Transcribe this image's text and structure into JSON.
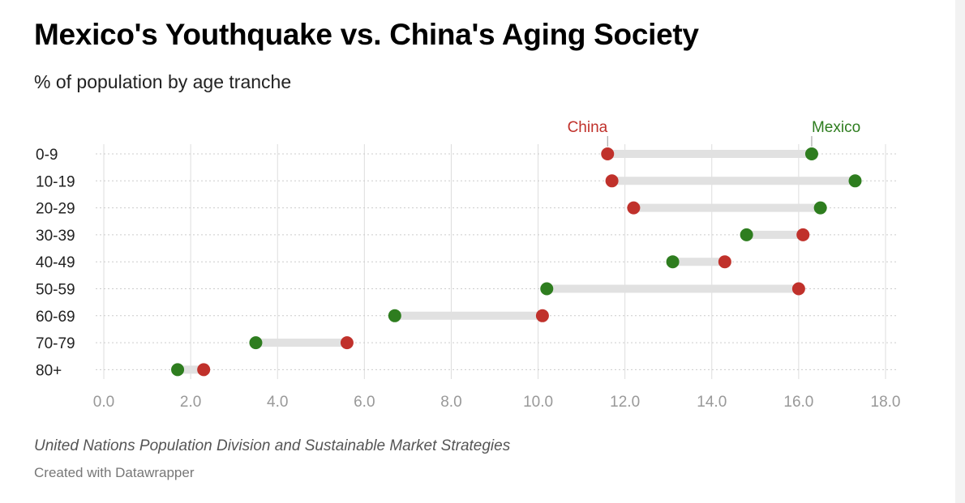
{
  "header": {
    "title": "Mexico's Youthquake vs. China's Aging Society",
    "subtitle": "% of population by age tranche"
  },
  "footer": {
    "source": "United Nations Population Division and Sustainable Market Strategies",
    "credit": "Created with Datawrapper"
  },
  "colors": {
    "china": "#c0312b",
    "mexico": "#2e7d1f",
    "connector": "#e1e1e1",
    "gridline": "#dddddd",
    "tick_label": "#999999",
    "category_label": "#222222"
  },
  "chart_data": {
    "type": "dot-range",
    "title": "Mexico's Youthquake vs. China's Aging Society",
    "subtitle": "% of population by age tranche",
    "categories": [
      "0-9",
      "10-19",
      "20-29",
      "30-39",
      "40-49",
      "50-59",
      "60-69",
      "70-79",
      "80+"
    ],
    "series": [
      {
        "name": "China",
        "color": "#c0312b",
        "values": [
          11.6,
          11.7,
          12.2,
          16.1,
          14.3,
          16.0,
          10.1,
          5.6,
          2.3
        ]
      },
      {
        "name": "Mexico",
        "color": "#2e7d1f",
        "values": [
          16.3,
          17.3,
          16.5,
          14.8,
          13.1,
          10.2,
          6.7,
          3.5,
          1.7
        ]
      }
    ],
    "xlim": [
      0,
      18
    ],
    "xticks": [
      "0.0",
      "2.0",
      "4.0",
      "6.0",
      "8.0",
      "10.0",
      "12.0",
      "14.0",
      "16.0",
      "18.0"
    ],
    "xtick_values": [
      0,
      2,
      4,
      6,
      8,
      10,
      12,
      14,
      16,
      18
    ],
    "legend": {
      "placement": "top-inline",
      "labels": [
        {
          "series": "China",
          "text": "China",
          "category": "0-9"
        },
        {
          "series": "Mexico",
          "text": "Mexico",
          "category": "0-9"
        }
      ]
    },
    "grid": true
  }
}
